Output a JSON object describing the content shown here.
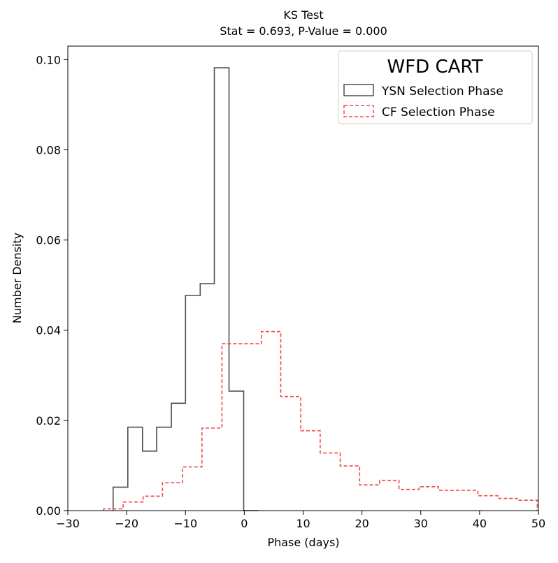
{
  "chart_data": {
    "type": "step-histogram",
    "title": "KS Test",
    "subtitle": "Stat = 0.693, P-Value = 0.000",
    "xlabel": "Phase (days)",
    "ylabel": "Number Density",
    "xlim": [
      -30,
      50
    ],
    "ylim": [
      0,
      0.103
    ],
    "xticks": [
      -30,
      -20,
      -10,
      0,
      10,
      20,
      30,
      40,
      50
    ],
    "xtick_labels": [
      "−30",
      "−20",
      "−10",
      "0",
      "10",
      "20",
      "30",
      "40",
      "50"
    ],
    "yticks": [
      0.0,
      0.02,
      0.04,
      0.06,
      0.08,
      0.1
    ],
    "ytick_labels": [
      "0.00",
      "0.02",
      "0.04",
      "0.06",
      "0.08",
      "0.10"
    ],
    "grid": false,
    "legend": {
      "title": "WFD CART",
      "position": "top-right",
      "entries": [
        "YSN Selection Phase",
        "CF Selection Phase"
      ]
    },
    "series": [
      {
        "name": "YSN Selection Phase",
        "color": "#4d4d4d",
        "linestyle": "solid",
        "bin_edges": [
          -22.3,
          -19.8,
          -17.3,
          -14.9,
          -12.4,
          -10.0,
          -7.5,
          -5.1,
          -2.6,
          -0.1,
          2.4
        ],
        "values": [
          0.0052,
          0.0185,
          0.0132,
          0.0185,
          0.0238,
          0.0477,
          0.0503,
          0.0982,
          0.0265,
          0.0
        ]
      },
      {
        "name": "CF Selection Phase",
        "color": "#f04848",
        "linestyle": "dashed",
        "bin_edges": [
          -23.9,
          -20.6,
          -17.2,
          -13.9,
          -10.5,
          -7.2,
          -3.8,
          -0.5,
          2.9,
          6.2,
          9.6,
          12.9,
          16.3,
          19.6,
          23.0,
          26.3,
          29.7,
          33.0,
          36.4,
          39.7,
          43.1,
          46.4,
          49.8
        ],
        "values": [
          0.0004,
          0.0019,
          0.0032,
          0.0062,
          0.0097,
          0.0183,
          0.037,
          0.037,
          0.0397,
          0.0253,
          0.0177,
          0.0128,
          0.0099,
          0.0057,
          0.0067,
          0.0047,
          0.0053,
          0.0045,
          0.0045,
          0.0033,
          0.0027,
          0.0023
        ]
      }
    ]
  }
}
